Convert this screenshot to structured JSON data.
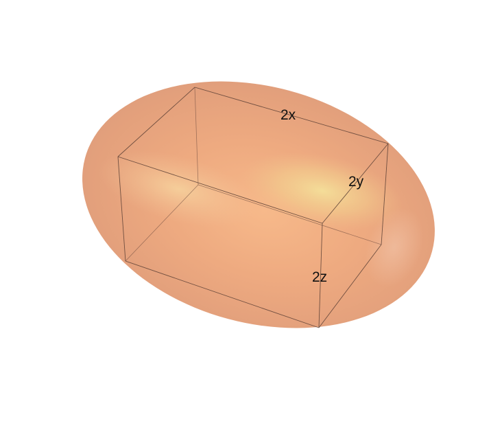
{
  "labels": {
    "x": "2x",
    "y": "2y",
    "z": "2z"
  },
  "colors": {
    "ellipsoid_base": "#e9a981",
    "ellipsoid_edge": "#d99a7a",
    "ellipsoid_highlight": "#f3df96",
    "box_edges": "#5a3f35",
    "background": "#ffffff"
  }
}
